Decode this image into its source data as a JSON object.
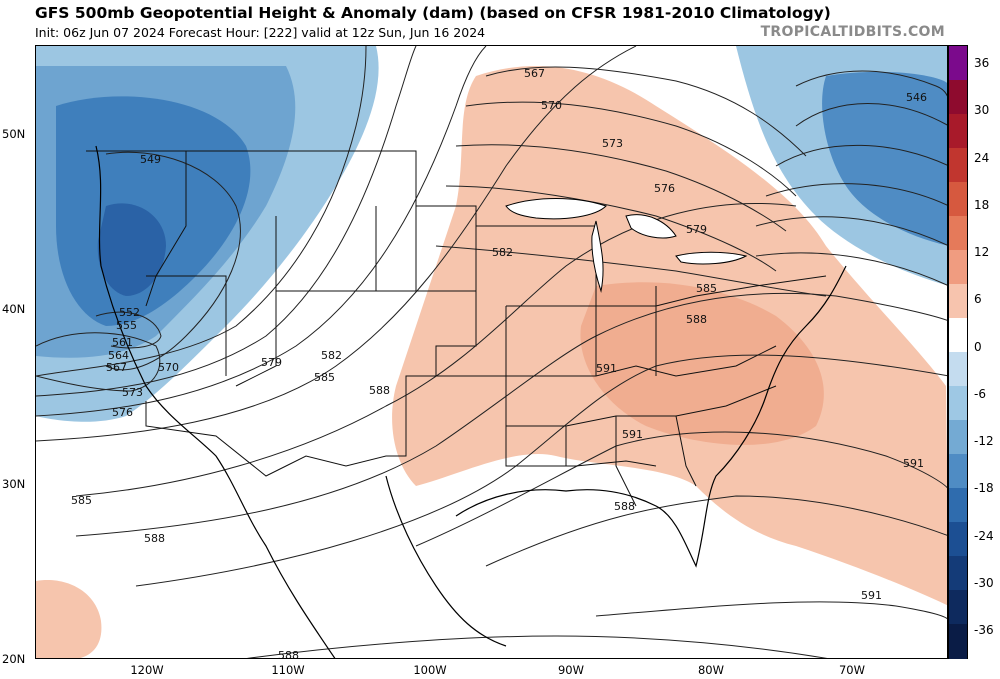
{
  "header": {
    "title": "GFS 500mb Geopotential Height & Anomaly (dam) (based on CFSR 1981-2010 Climatology)",
    "subtitle": "Init: 06z Jun 07 2024   Forecast Hour: [222]   valid at 12z Sun, Jun 16 2024",
    "credit": "TROPICALTIDBITS.COM"
  },
  "axes": {
    "lat_labels": [
      "50N",
      "40N",
      "30N",
      "20N"
    ],
    "lon_labels": [
      "120W",
      "110W",
      "100W",
      "90W",
      "80W",
      "70W"
    ]
  },
  "colorbar": {
    "ticks": [
      "36",
      "30",
      "24",
      "18",
      "12",
      "6",
      "0",
      "-6",
      "-12",
      "-18",
      "-24",
      "-30",
      "-36"
    ],
    "colors": [
      "#7b0a8c",
      "#8e0b2e",
      "#a81a2a",
      "#c1362f",
      "#d6593f",
      "#e57a5a",
      "#f09c80",
      "#f7c4ae",
      "#ffffff",
      "#c4dcef",
      "#9ec8e4",
      "#74aad3",
      "#4f8cc4",
      "#2f6cae",
      "#1c4f93",
      "#143b78",
      "#0e2a5e",
      "#0a1c46"
    ]
  },
  "contours": {
    "labels": [
      "549",
      "552",
      "555",
      "561",
      "564",
      "567",
      "570",
      "573",
      "576",
      "579",
      "582",
      "585",
      "588",
      "591",
      "567",
      "570",
      "573",
      "576",
      "579",
      "582",
      "585",
      "588",
      "591",
      "546",
      "591",
      "588",
      "591",
      "588",
      "585",
      "588"
    ]
  },
  "legend_colors": {
    "warm_anomaly": "#f6c5ad",
    "warm_anomaly_strong": "#f0ad90",
    "cold_anomaly": "#9cc6e2",
    "cold_anomaly_strong": "#3f7fbc",
    "cold_anomaly_core": "#2a62a6"
  }
}
